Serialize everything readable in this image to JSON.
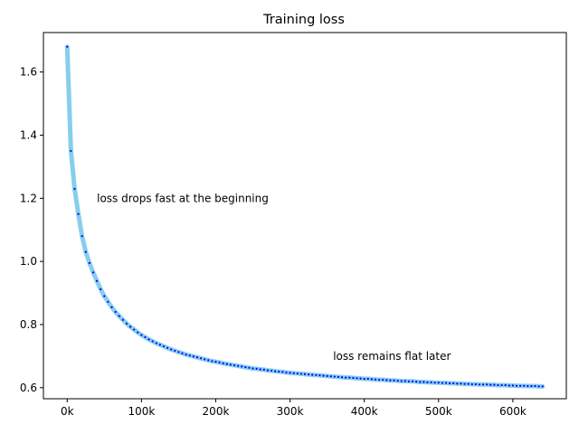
{
  "chart_data": {
    "type": "line",
    "title": "Training loss",
    "xlabel": "",
    "ylabel": "",
    "xlim": [
      -32000,
      672000
    ],
    "ylim": [
      0.565,
      1.725
    ],
    "grid": false,
    "x_ticks": [
      0,
      100000,
      200000,
      300000,
      400000,
      500000,
      600000
    ],
    "x_tick_labels": [
      "0k",
      "100k",
      "200k",
      "300k",
      "400k",
      "500k",
      "600k"
    ],
    "y_ticks": [
      0.6,
      0.8,
      1.0,
      1.2,
      1.4,
      1.6
    ],
    "y_tick_labels": [
      "0.6",
      "0.8",
      "1.0",
      "1.2",
      "1.4",
      "1.6"
    ],
    "series": [
      {
        "line_color": "#87ceeb",
        "marker_color": "#0000ff",
        "x": [
          0,
          5000,
          10000,
          15000,
          20000,
          25000,
          30000,
          35000,
          40000,
          45000,
          50000,
          55000,
          60000,
          65000,
          70000,
          75000,
          80000,
          85000,
          90000,
          95000,
          100000,
          105000,
          110000,
          115000,
          120000,
          125000,
          130000,
          135000,
          140000,
          145000,
          150000,
          155000,
          160000,
          165000,
          170000,
          175000,
          180000,
          185000,
          190000,
          195000,
          200000,
          205000,
          210000,
          215000,
          220000,
          225000,
          230000,
          235000,
          240000,
          245000,
          250000,
          255000,
          260000,
          265000,
          270000,
          275000,
          280000,
          285000,
          290000,
          295000,
          300000,
          305000,
          310000,
          315000,
          320000,
          325000,
          330000,
          335000,
          340000,
          345000,
          350000,
          355000,
          360000,
          365000,
          370000,
          375000,
          380000,
          385000,
          390000,
          395000,
          400000,
          405000,
          410000,
          415000,
          420000,
          425000,
          430000,
          435000,
          440000,
          445000,
          450000,
          455000,
          460000,
          465000,
          470000,
          475000,
          480000,
          485000,
          490000,
          495000,
          500000,
          505000,
          510000,
          515000,
          520000,
          525000,
          530000,
          535000,
          540000,
          545000,
          550000,
          555000,
          560000,
          565000,
          570000,
          575000,
          580000,
          585000,
          590000,
          595000,
          600000,
          605000,
          610000,
          615000,
          620000,
          625000,
          630000,
          635000,
          640000
        ],
        "y": [
          1.68,
          1.35,
          1.23,
          1.15,
          1.08,
          1.03,
          0.995,
          0.965,
          0.938,
          0.912,
          0.89,
          0.872,
          0.855,
          0.84,
          0.827,
          0.815,
          0.803,
          0.793,
          0.784,
          0.775,
          0.767,
          0.76,
          0.753,
          0.747,
          0.741,
          0.736,
          0.731,
          0.726,
          0.721,
          0.717,
          0.713,
          0.709,
          0.705,
          0.702,
          0.699,
          0.696,
          0.693,
          0.69,
          0.687,
          0.684,
          0.682,
          0.68,
          0.677,
          0.675,
          0.673,
          0.671,
          0.669,
          0.667,
          0.665,
          0.663,
          0.661,
          0.66,
          0.658,
          0.657,
          0.655,
          0.654,
          0.652,
          0.651,
          0.65,
          0.648,
          0.647,
          0.646,
          0.645,
          0.644,
          0.643,
          0.642,
          0.641,
          0.64,
          0.639,
          0.638,
          0.637,
          0.636,
          0.635,
          0.634,
          0.633,
          0.632,
          0.632,
          0.631,
          0.63,
          0.629,
          0.628,
          0.628,
          0.627,
          0.626,
          0.625,
          0.625,
          0.624,
          0.623,
          0.623,
          0.622,
          0.621,
          0.621,
          0.62,
          0.62,
          0.619,
          0.618,
          0.618,
          0.617,
          0.617,
          0.616,
          0.616,
          0.615,
          0.615,
          0.614,
          0.614,
          0.613,
          0.613,
          0.612,
          0.612,
          0.611,
          0.611,
          0.61,
          0.61,
          0.61,
          0.609,
          0.609,
          0.608,
          0.608,
          0.608,
          0.607,
          0.607,
          0.606,
          0.606,
          0.606,
          0.605,
          0.605,
          0.605,
          0.604,
          0.604
        ]
      }
    ],
    "annotations": [
      {
        "text": "loss drops fast at the beginning",
        "x": 40000,
        "y": 1.2
      },
      {
        "text": "loss remains flat later",
        "x": 358000,
        "y": 0.7
      }
    ]
  }
}
